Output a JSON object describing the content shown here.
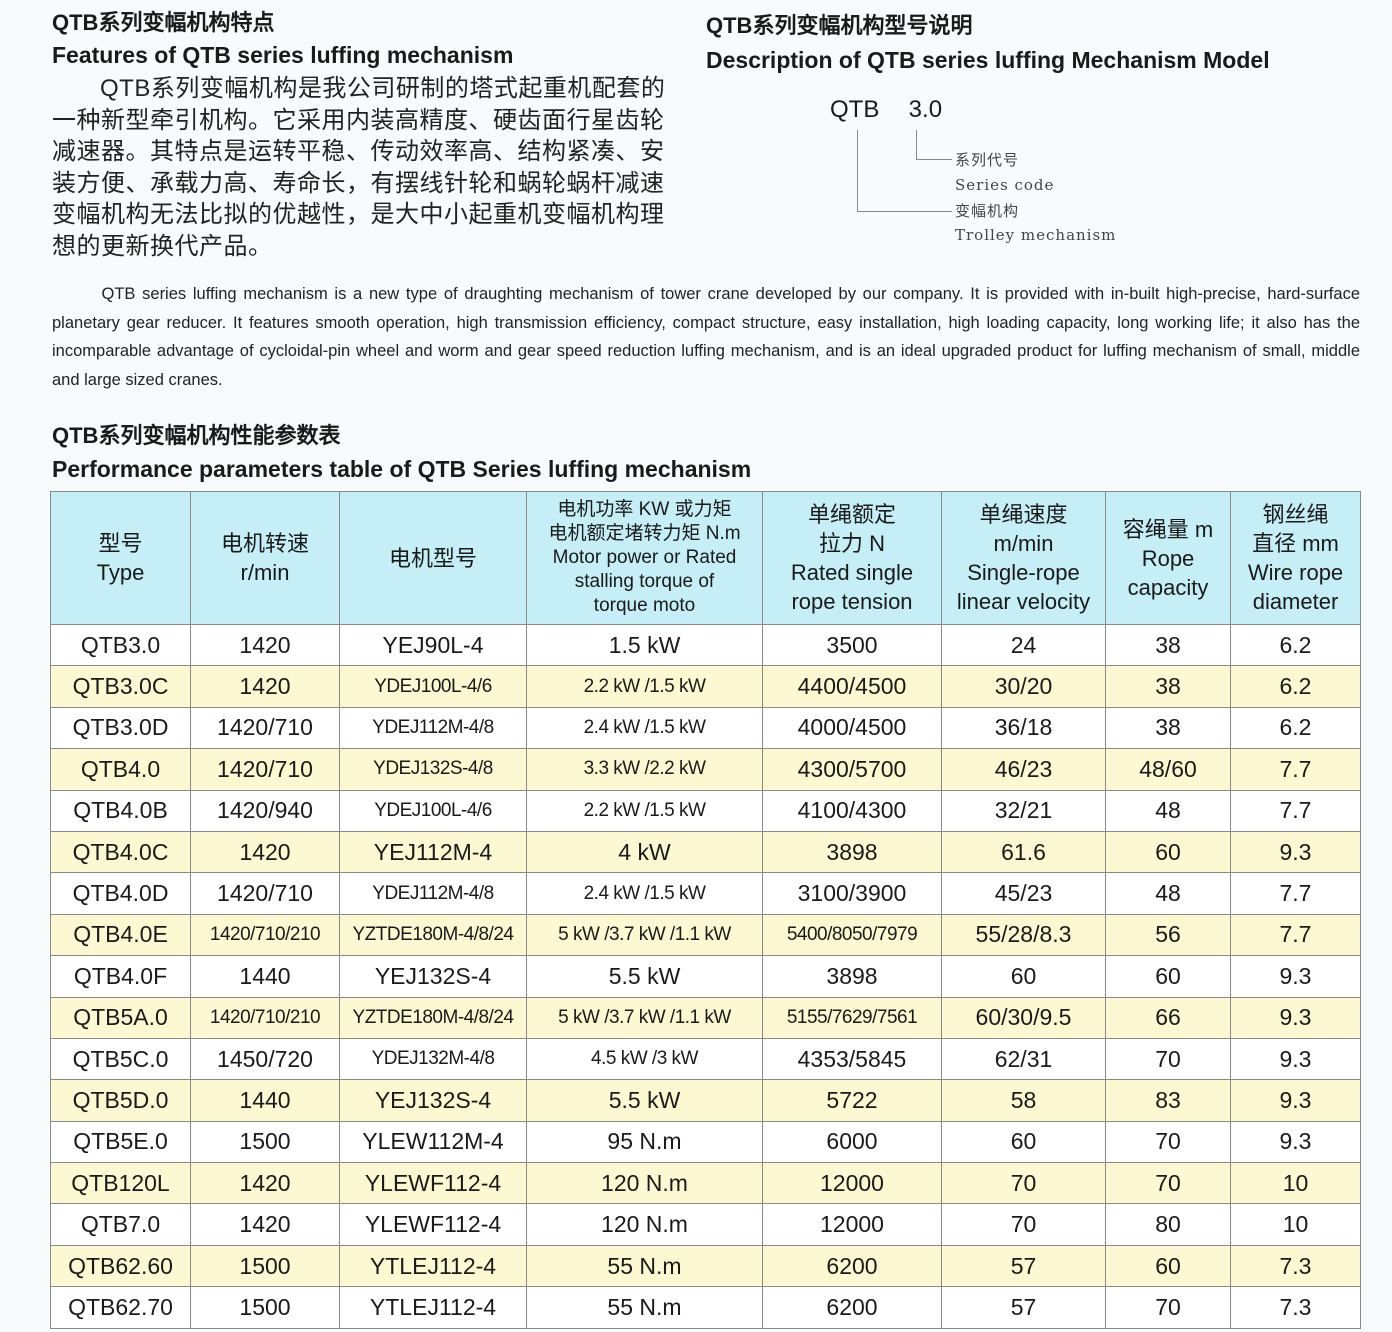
{
  "features": {
    "title_cn": "QTB系列变幅机构特点",
    "title_en": "Features of QTB series luffing mechanism",
    "body_cn": "QTB系列变幅机构是我公司研制的塔式起重机配套的一种新型牵引机构。它采用内装高精度、硬齿面行星齿轮减速器。其特点是运转平稳、传动效率高、结构紧凑、安装方便、承载力高、寿命长，有摆线针轮和蜗轮蜗杆减速变幅机构无法比拟的优越性，是大中小起重机变幅机构理想的更新换代产品。"
  },
  "model_desc": {
    "title_cn": "QTB系列变幅机构型号说明",
    "title_en": "Description of QTB series luffing Mechanism Model",
    "code": "QTB  3.0",
    "series_cn": "系列代号",
    "series_en": "Series code",
    "trolley_cn": "变幅机构",
    "trolley_en": "Trolley mechanism"
  },
  "intro_en": "QTB series luffing mechanism is a new type of draughting mechanism of tower crane developed by our company. It is provided with in-built high-precise, hard-surface planetary gear reducer. It features smooth operation, high transmission efficiency, compact structure, easy installation, high loading capacity, long working life; it also has the incomparable advantage of cycloidal-pin wheel and worm and gear speed reduction luffing mechanism, and is an ideal upgraded product for luffing mechanism of small, middle and large sized cranes.",
  "table": {
    "title_cn": "QTB系列变幅机构性能参数表",
    "title_en": "Performance parameters table of QTB Series luffing mechanism",
    "colors": {
      "header_bg": "#c6eef6",
      "alt_row_bg": "#fbf8d2"
    },
    "headers": [
      [
        "型号",
        "Type"
      ],
      [
        "电机转速",
        "r/min"
      ],
      [
        "电机型号"
      ],
      [
        "电机功率 KW 或力矩",
        "电机额定堵转力矩 N.m",
        "Motor power or Rated",
        "stalling torque of",
        "torque moto"
      ],
      [
        "单绳额定",
        "拉力 N",
        "Rated single",
        "rope tension"
      ],
      [
        "单绳速度",
        "m/min",
        "Single-rope",
        "linear velocity"
      ],
      [
        "容绳量 m",
        "Rope",
        "capacity"
      ],
      [
        "钢丝绳",
        "直径 mm",
        "Wire rope",
        "diameter"
      ]
    ],
    "rows": [
      [
        "QTB3.0",
        "1420",
        "YEJ90L-4",
        "1.5 kW",
        "3500",
        "24",
        "38",
        "6.2"
      ],
      [
        "QTB3.0C",
        "1420",
        "YDEJ100L-4/6",
        "2.2 kW /1.5 kW",
        "4400/4500",
        "30/20",
        "38",
        "6.2"
      ],
      [
        "QTB3.0D",
        "1420/710",
        "YDEJ112M-4/8",
        "2.4 kW /1.5 kW",
        "4000/4500",
        "36/18",
        "38",
        "6.2"
      ],
      [
        "QTB4.0",
        "1420/710",
        "YDEJ132S-4/8",
        "3.3 kW /2.2 kW",
        "4300/5700",
        "46/23",
        "48/60",
        "7.7"
      ],
      [
        "QTB4.0B",
        "1420/940",
        "YDEJ100L-4/6",
        "2.2 kW /1.5 kW",
        "4100/4300",
        "32/21",
        "48",
        "7.7"
      ],
      [
        "QTB4.0C",
        "1420",
        "YEJ112M-4",
        "4 kW",
        "3898",
        "61.6",
        "60",
        "9.3"
      ],
      [
        "QTB4.0D",
        "1420/710",
        "YDEJ112M-4/8",
        "2.4 kW /1.5 kW",
        "3100/3900",
        "45/23",
        "48",
        "7.7"
      ],
      [
        "QTB4.0E",
        "1420/710/210",
        "YZTDE180M-4/8/24",
        "5 kW /3.7 kW /1.1 kW",
        "5400/8050/7979",
        "55/28/8.3",
        "56",
        "7.7"
      ],
      [
        "QTB4.0F",
        "1440",
        "YEJ132S-4",
        "5.5 kW",
        "3898",
        "60",
        "60",
        "9.3"
      ],
      [
        "QTB5A.0",
        "1420/710/210",
        "YZTDE180M-4/8/24",
        "5 kW /3.7 kW /1.1 kW",
        "5155/7629/7561",
        "60/30/9.5",
        "66",
        "9.3"
      ],
      [
        "QTB5C.0",
        "1450/720",
        "YDEJ132M-4/8",
        "4.5 kW /3 kW",
        "4353/5845",
        "62/31",
        "70",
        "9.3"
      ],
      [
        "QTB5D.0",
        "1440",
        "YEJ132S-4",
        "5.5 kW",
        "5722",
        "58",
        "83",
        "9.3"
      ],
      [
        "QTB5E.0",
        "1500",
        "YLEW112M-4",
        "95 N.m",
        "6000",
        "60",
        "70",
        "9.3"
      ],
      [
        "QTB120L",
        "1420",
        "YLEWF112-4",
        "120 N.m",
        "12000",
        "70",
        "70",
        "10"
      ],
      [
        "QTB7.0",
        "1420",
        "YLEWF112-4",
        "120 N.m",
        "12000",
        "70",
        "80",
        "10"
      ],
      [
        "QTB62.60",
        "1500",
        "YTLEJ112-4",
        "55 N.m",
        "6200",
        "57",
        "60",
        "7.3"
      ],
      [
        "QTB62.70",
        "1500",
        "YTLEJ112-4",
        "55 N.m",
        "6200",
        "57",
        "70",
        "7.3"
      ]
    ]
  }
}
